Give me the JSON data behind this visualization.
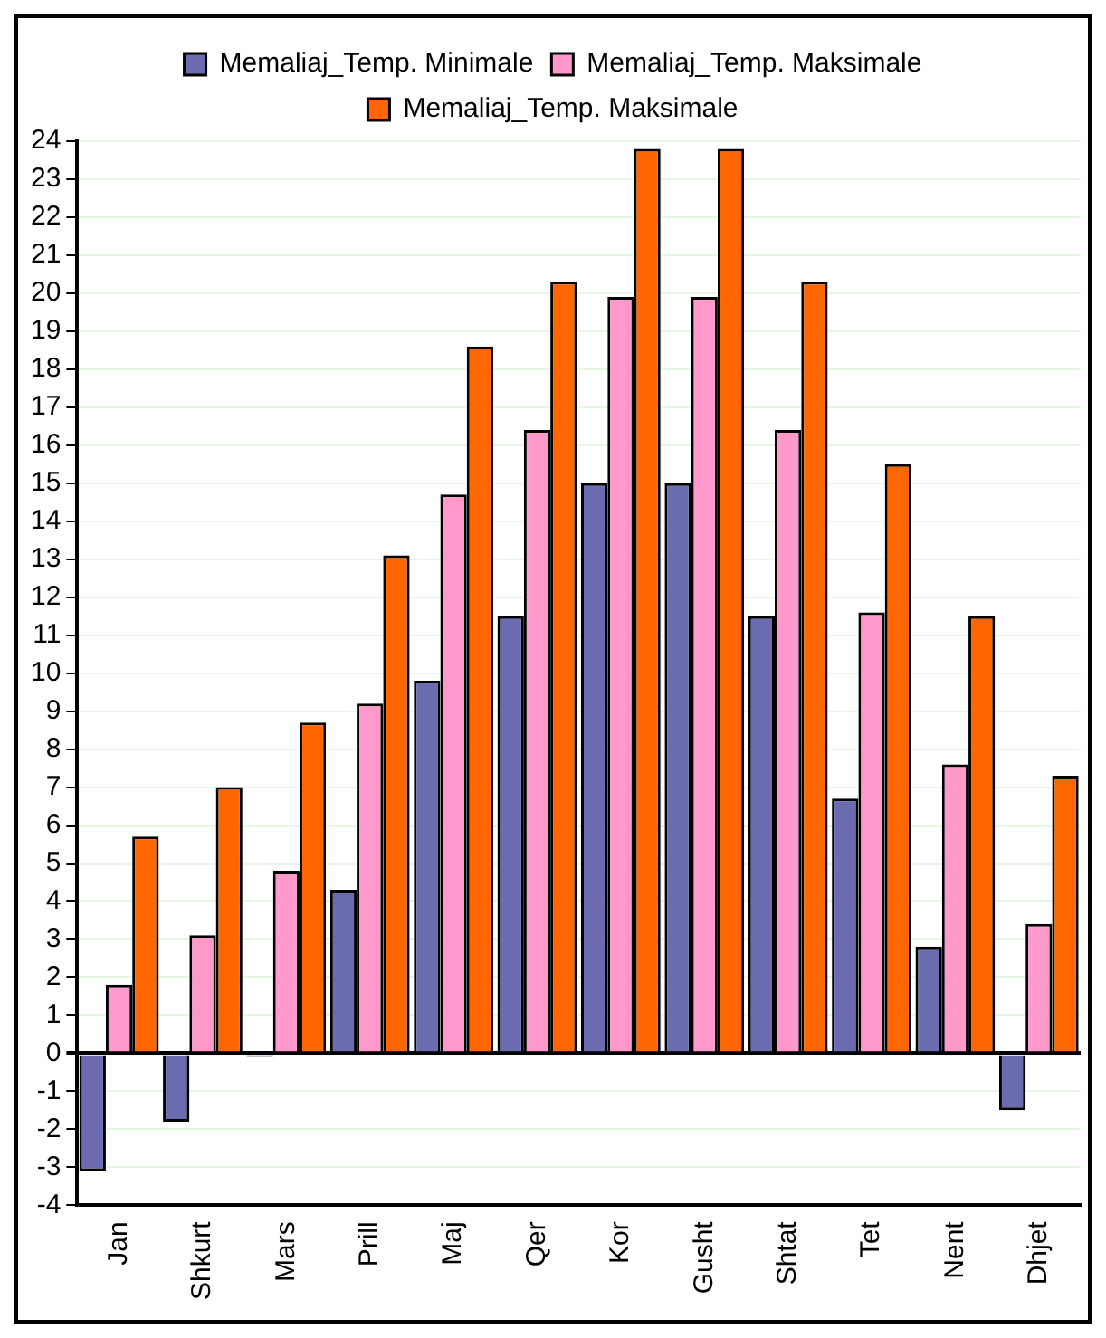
{
  "chart_data": {
    "type": "bar",
    "categories": [
      "Jan",
      "Shkurt",
      "Mars",
      "Prill",
      "Maj",
      "Qer",
      "Kor",
      "Gusht",
      "Shtat",
      "Tet",
      "Nent",
      "Dhjet"
    ],
    "series": [
      {
        "name": "Memaliaj_Temp. Minimale",
        "color": "#6b6bb0",
        "values": [
          -3.1,
          -1.8,
          -0.1,
          4.3,
          9.8,
          11.5,
          15.0,
          15.0,
          11.5,
          6.7,
          2.8,
          -1.5
        ]
      },
      {
        "name": "Memaliaj_Temp. Maksimale",
        "color": "#ff99cc",
        "values": [
          1.8,
          3.1,
          4.8,
          9.2,
          14.7,
          16.4,
          19.9,
          19.9,
          16.4,
          11.6,
          7.6,
          3.4
        ]
      },
      {
        "name": "Memaliaj_Temp. Maksimale",
        "color": "#ff6600",
        "values": [
          5.7,
          7.0,
          8.7,
          13.1,
          18.6,
          20.3,
          23.8,
          23.8,
          20.3,
          15.5,
          11.5,
          7.3
        ]
      }
    ],
    "ylim": [
      -4,
      24
    ],
    "yticks": [
      -4,
      -3,
      -2,
      -1,
      0,
      1,
      2,
      3,
      4,
      5,
      6,
      7,
      8,
      9,
      10,
      11,
      12,
      13,
      14,
      15,
      16,
      17,
      18,
      19,
      20,
      21,
      22,
      23,
      24
    ],
    "grid": "y",
    "legend": "top"
  }
}
